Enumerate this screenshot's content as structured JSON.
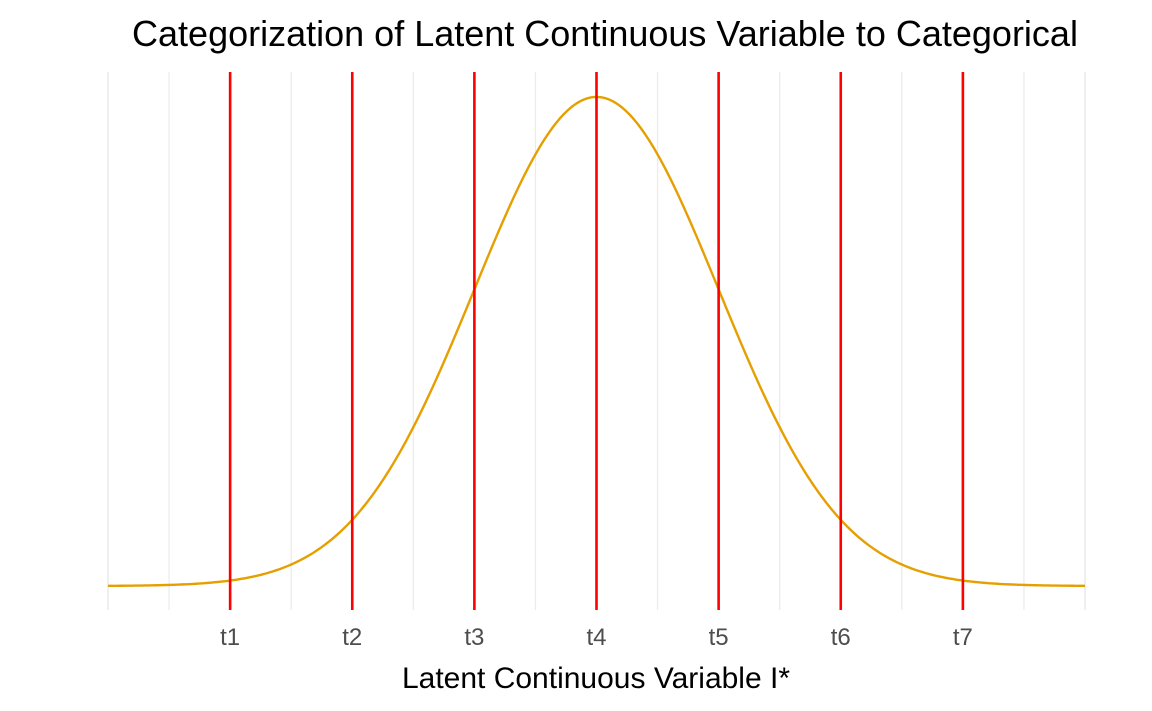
{
  "chart_data": {
    "type": "line",
    "title": "Categorization of Latent Continuous Variable to Categorical",
    "xlabel": "Latent Continuous Variable I*",
    "ylabel": "",
    "xlim": [
      -4,
      4
    ],
    "ylim": [
      0,
      0.4
    ],
    "grid": {
      "x_major": true,
      "x_minor": true,
      "y": false
    },
    "legend": "none",
    "series": [
      {
        "distribution": "standard normal density",
        "color": "#E69F00",
        "x": [
          -4.0,
          -3.5,
          -3.0,
          -2.5,
          -2.0,
          -1.5,
          -1.0,
          -0.5,
          0.0,
          0.5,
          1.0,
          1.5,
          2.0,
          2.5,
          3.0,
          3.5,
          4.0
        ],
        "y": [
          0.0001,
          0.0009,
          0.0044,
          0.0175,
          0.054,
          0.1295,
          0.242,
          0.3521,
          0.3989,
          0.3521,
          0.242,
          0.1295,
          0.054,
          0.0175,
          0.0044,
          0.0009,
          0.0001
        ]
      }
    ],
    "thresholds": {
      "color": "#FF0000",
      "values": [
        -3,
        -2,
        -1,
        0,
        1,
        2,
        3
      ],
      "labels": [
        "t1",
        "t2",
        "t3",
        "t4",
        "t5",
        "t6",
        "t7"
      ]
    },
    "minor_grid_x": [
      -3.5,
      -2.5,
      -1.5,
      -0.5,
      0.5,
      1.5,
      2.5,
      3.5
    ],
    "panel_edge_x": [
      -4,
      4
    ],
    "colors": {
      "gridline": "#EBEBEB",
      "tick_text": "#4D4D4D",
      "text": "#000000"
    }
  }
}
